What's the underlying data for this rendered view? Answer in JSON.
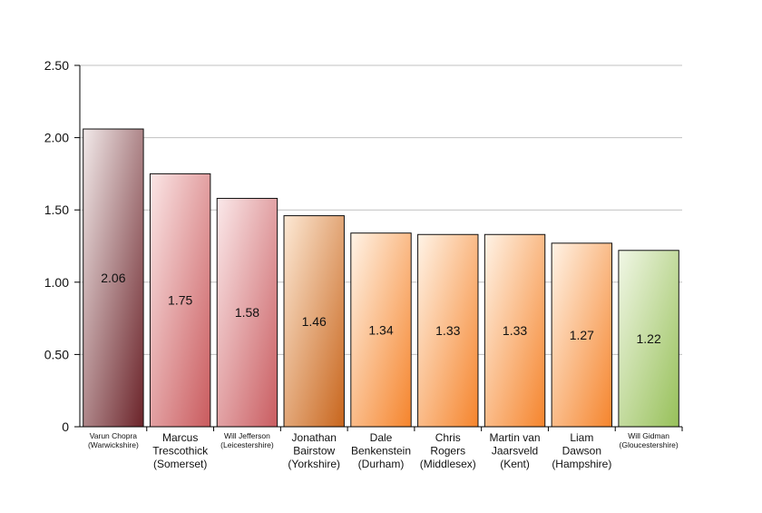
{
  "chart_data": {
    "type": "bar",
    "title": "",
    "xlabel": "",
    "ylabel": "",
    "ylim": [
      0,
      2.5
    ],
    "y_ticks": [
      "0",
      "0.50",
      "1.00",
      "1.50",
      "2.00",
      "2.50"
    ],
    "y_tick_values": [
      0,
      0.5,
      1.0,
      1.5,
      2.0,
      2.5
    ],
    "grid": true,
    "legend": "none",
    "categories": [
      [
        "Varun Chopra",
        "(Warwickshire)"
      ],
      [
        "Marcus",
        "Trescothick",
        "(Somerset)"
      ],
      [
        "Will Jefferson",
        "(Leicestershire)"
      ],
      [
        "Jonathan",
        "Bairstow",
        "(Yorkshire)"
      ],
      [
        "Dale",
        "Benkenstein",
        "(Durham)"
      ],
      [
        "Chris",
        "Rogers",
        "(Middlesex)"
      ],
      [
        "Martin van",
        "Jaarsveld",
        "(Kent)"
      ],
      [
        "Liam",
        "Dawson",
        "(Hampshire)"
      ],
      [
        "Will Gidman",
        "(Gloucestershire)"
      ]
    ],
    "category_small": [
      true,
      false,
      true,
      false,
      false,
      false,
      false,
      false,
      true
    ],
    "values": [
      2.06,
      1.75,
      1.58,
      1.46,
      1.34,
      1.33,
      1.33,
      1.27,
      1.22
    ],
    "value_labels": [
      "2.06",
      "1.75",
      "1.58",
      "1.46",
      "1.34",
      "1.33",
      "1.33",
      "1.27",
      "1.22"
    ],
    "bar_colors": [
      [
        "#f2eaea",
        "#6b2329"
      ],
      [
        "#fbe6e6",
        "#c95a5d"
      ],
      [
        "#fbe9ea",
        "#c95c60"
      ],
      [
        "#fde9d5",
        "#c8651c"
      ],
      [
        "#fff3e6",
        "#f5842c"
      ],
      [
        "#fff3e6",
        "#f5842c"
      ],
      [
        "#fff3e6",
        "#f5842c"
      ],
      [
        "#fff3e6",
        "#f5842c"
      ],
      [
        "#f1f7e6",
        "#97c059"
      ]
    ],
    "gridline_color": "#c0c0c0",
    "axis_color": "#000000"
  }
}
